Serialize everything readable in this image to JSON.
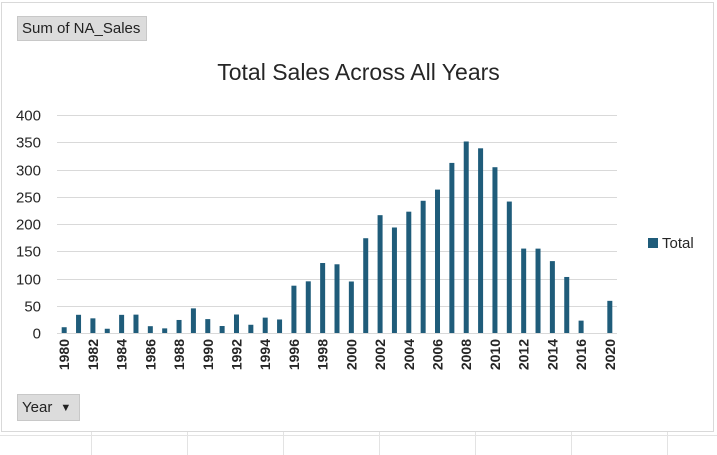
{
  "value_field_button": {
    "label": "Sum of NA_Sales"
  },
  "axis_field_button": {
    "label": "Year",
    "dropdown_glyph": "▼"
  },
  "chart_data": {
    "type": "bar",
    "title": "Total Sales Across All Years",
    "xlabel": "",
    "ylabel": "",
    "ylim": [
      0,
      400
    ],
    "yticks": [
      0,
      50,
      100,
      150,
      200,
      250,
      300,
      350,
      400
    ],
    "grid": true,
    "legend_position": "right",
    "bar_color": "#1f5c7a",
    "categories": [
      "1980",
      "1981",
      "1982",
      "1983",
      "1984",
      "1985",
      "1986",
      "1987",
      "1988",
      "1989",
      "1990",
      "1991",
      "1992",
      "1993",
      "1994",
      "1995",
      "1996",
      "1997",
      "1998",
      "1999",
      "2000",
      "2001",
      "2002",
      "2003",
      "2004",
      "2005",
      "2006",
      "2007",
      "2008",
      "2009",
      "2010",
      "2011",
      "2012",
      "2013",
      "2014",
      "2015",
      "2016",
      "2017",
      "2020"
    ],
    "tick_labels": [
      "1980",
      "",
      "1982",
      "",
      "1984",
      "",
      "1986",
      "",
      "1988",
      "",
      "1990",
      "",
      "1992",
      "",
      "1994",
      "",
      "1996",
      "",
      "1998",
      "",
      "2000",
      "",
      "2002",
      "",
      "2004",
      "",
      "2006",
      "",
      "2008",
      "",
      "2010",
      "",
      "2012",
      "",
      "2014",
      "",
      "2016",
      "",
      "2020"
    ],
    "series": [
      {
        "name": "Total",
        "values": [
          10.6,
          33.4,
          26.9,
          7.8,
          33.3,
          33.7,
          12.5,
          8.5,
          23.9,
          45.2,
          25.5,
          12.8,
          33.9,
          15.1,
          28.2,
          24.8,
          86.8,
          94.8,
          128.4,
          126.1,
          94.5,
          173.9,
          216.2,
          193.6,
          222.6,
          242.6,
          263.1,
          312.1,
          351.4,
          338.9,
          304.2,
          241.2,
          154.9,
          154.8,
          131.9,
          102.8,
          22.7,
          0.0,
          59.0
        ]
      }
    ]
  }
}
